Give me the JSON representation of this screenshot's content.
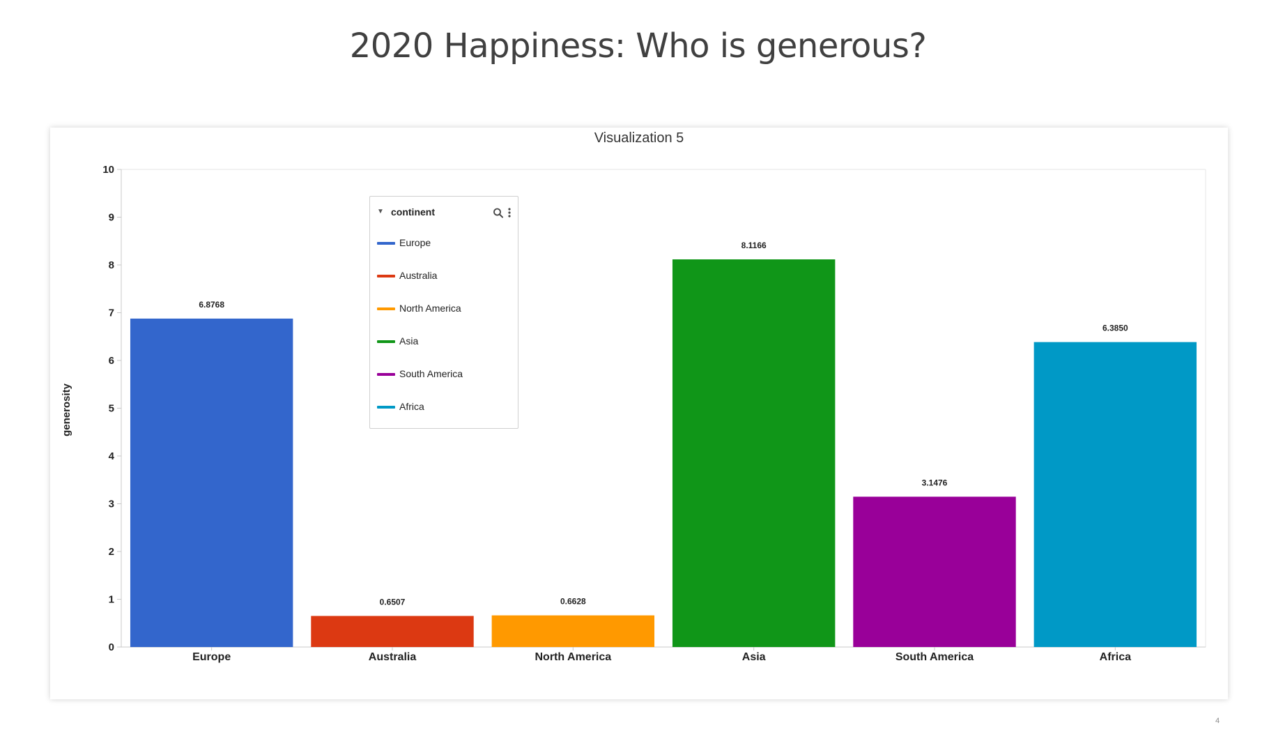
{
  "slide": {
    "title": "2020 Happiness: Who is generous?",
    "page_number": "4"
  },
  "visualization": {
    "title": "Visualization 5"
  },
  "legend": {
    "title": "continent",
    "caret_icon": "caret-down-icon",
    "search_icon": "search-icon",
    "more_icon": "more-vertical-icon",
    "items": [
      {
        "label": "Europe",
        "color": "#3366cc"
      },
      {
        "label": "Australia",
        "color": "#dc3912"
      },
      {
        "label": "North America",
        "color": "#ff9900"
      },
      {
        "label": "Asia",
        "color": "#109618"
      },
      {
        "label": "South America",
        "color": "#990099"
      },
      {
        "label": "Africa",
        "color": "#0099c6"
      }
    ]
  },
  "chart_data": {
    "type": "bar",
    "ylabel": "generosity",
    "xlabel": "",
    "ylim": [
      0,
      10
    ],
    "yticks": [
      "0",
      "1",
      "2",
      "3",
      "4",
      "5",
      "6",
      "7",
      "8",
      "9",
      "10"
    ],
    "categories": [
      "Europe",
      "Australia",
      "North America",
      "Asia",
      "South America",
      "Africa"
    ],
    "values": [
      6.8768,
      0.6507,
      0.6628,
      8.1166,
      3.1476,
      6.385
    ],
    "value_labels": [
      "6.8768",
      "0.6507",
      "0.6628",
      "8.1166",
      "3.1476",
      "6.3850"
    ],
    "colors": [
      "#3366cc",
      "#dc3912",
      "#ff9900",
      "#109618",
      "#990099",
      "#0099c6"
    ],
    "grid": false,
    "legend_position": "top-left"
  }
}
